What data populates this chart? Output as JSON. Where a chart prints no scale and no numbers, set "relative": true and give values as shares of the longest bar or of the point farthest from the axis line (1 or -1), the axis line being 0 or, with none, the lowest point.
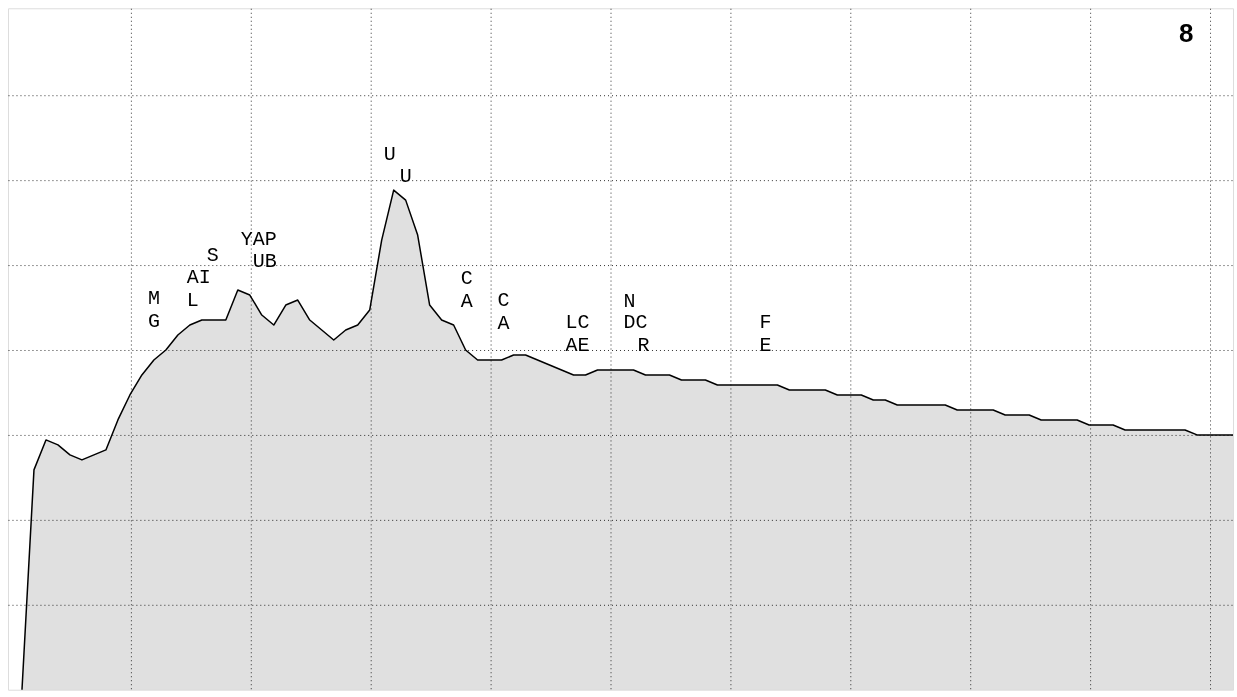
{
  "chart_data": {
    "type": "area",
    "relative": true,
    "grid": true,
    "categories": [
      null,
      null,
      null,
      null,
      null,
      null,
      null,
      null,
      null,
      null,
      null,
      null,
      null,
      null,
      null,
      null,
      null,
      null,
      null,
      null,
      null,
      null,
      null,
      null,
      null,
      null,
      null,
      null,
      null,
      null,
      null,
      null,
      null,
      null,
      null,
      null,
      null,
      null,
      null,
      null,
      null,
      null,
      null,
      null,
      null,
      null,
      null,
      null,
      null,
      null,
      null,
      null,
      null,
      null,
      null,
      null,
      null,
      null,
      null,
      null,
      null,
      null,
      null,
      null,
      null,
      null,
      null,
      null,
      null,
      null,
      null,
      null,
      null,
      null,
      null,
      null,
      null,
      null,
      null,
      null,
      null,
      null,
      null,
      null,
      null,
      null,
      null,
      null,
      null,
      null,
      null,
      null,
      null,
      null,
      null,
      null,
      null,
      null,
      null,
      null,
      null,
      null
    ],
    "series": [
      {
        "color": "#000000",
        "values": [
          0,
          0.44,
          0.5,
          0.49,
          0.47,
          0.46,
          0.47,
          0.48,
          0.54,
          0.59,
          0.63,
          0.66,
          0.68,
          0.71,
          0.73,
          0.74,
          0.74,
          0.74,
          0.8,
          0.79,
          0.75,
          0.73,
          0.77,
          0.78,
          0.74,
          0.72,
          0.7,
          0.72,
          0.73,
          0.76,
          0.9,
          1.0,
          0.98,
          0.91,
          0.77,
          0.74,
          0.73,
          0.68,
          0.66,
          0.66,
          0.66,
          0.67,
          0.67,
          0.66,
          0.65,
          0.64,
          0.63,
          0.63,
          0.64,
          0.64,
          0.64,
          0.64,
          0.63,
          0.63,
          0.63,
          0.62,
          0.62,
          0.62,
          0.61,
          0.61,
          0.61,
          0.61,
          0.61,
          0.61,
          0.6,
          0.6,
          0.6,
          0.6,
          0.59,
          0.59,
          0.59,
          0.58,
          0.58,
          0.57,
          0.57,
          0.57,
          0.57,
          0.57,
          0.56,
          0.56,
          0.56,
          0.56,
          0.55,
          0.55,
          0.55,
          0.54,
          0.54,
          0.54,
          0.54,
          0.53,
          0.53,
          0.53,
          0.52,
          0.52,
          0.52,
          0.52,
          0.52,
          0.52,
          0.51,
          0.51,
          0.51,
          0.51
        ]
      }
    ],
    "annotations": [
      "8",
      "M",
      "G",
      "S",
      "AI",
      "L",
      "YAP",
      "UB",
      "U",
      "U",
      "C",
      "A",
      "C",
      "A",
      "LC",
      "AE",
      "N",
      "DC",
      "R",
      "F",
      "E"
    ]
  }
}
